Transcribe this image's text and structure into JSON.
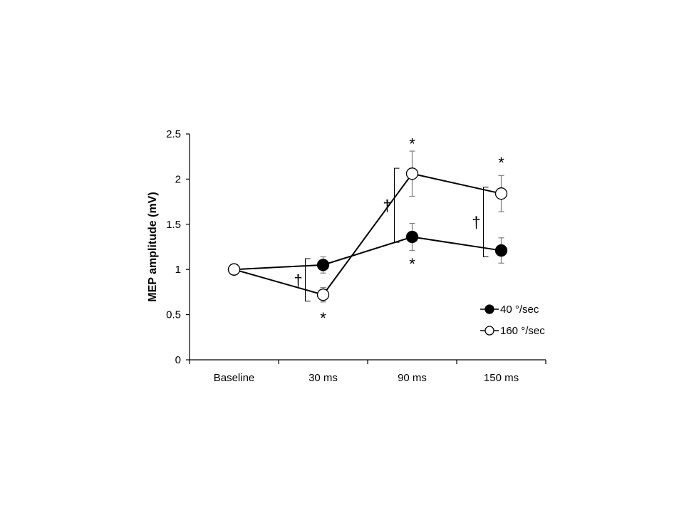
{
  "chart_data": {
    "type": "line",
    "title": "",
    "xlabel": "",
    "ylabel": "MEP amplitude (mV)",
    "ylim": [
      0,
      2.5
    ],
    "yticks": [
      "0",
      "0.5",
      "1",
      "1.5",
      "2",
      "2.5"
    ],
    "ytick_values": [
      0,
      0.5,
      1,
      1.5,
      2,
      2.5
    ],
    "categories": [
      "Baseline",
      "30 ms",
      "90 ms",
      "150 ms"
    ],
    "grid": false,
    "legend_position": "bottom-right",
    "series": [
      {
        "name": "40 °/sec",
        "marker": "filled-circle",
        "color": "#000000",
        "values": [
          1.0,
          1.05,
          1.36,
          1.21
        ],
        "errors": [
          0,
          0.09,
          0.15,
          0.14
        ]
      },
      {
        "name": "160 °/sec",
        "marker": "open-circle",
        "color": "#000000",
        "values": [
          1.0,
          0.72,
          2.06,
          1.84
        ],
        "errors": [
          0,
          0.08,
          0.25,
          0.2
        ]
      }
    ],
    "annotations": [
      {
        "text": "*",
        "category": "30 ms",
        "y": 0.48
      },
      {
        "text": "*",
        "category": "90 ms",
        "y": 2.41
      },
      {
        "text": "*",
        "category": "90 ms",
        "y": 1.08
      },
      {
        "text": "*",
        "category": "150 ms",
        "y": 2.2
      },
      {
        "text": "†",
        "category": "30 ms",
        "between": [
          0.65,
          1.12
        ]
      },
      {
        "text": "†",
        "category": "90 ms",
        "between": [
          1.3,
          2.12
        ]
      },
      {
        "text": "†",
        "category": "150 ms",
        "between": [
          1.14,
          1.91
        ]
      }
    ]
  }
}
